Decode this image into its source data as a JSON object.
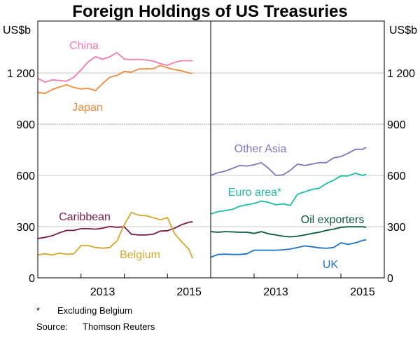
{
  "chart_data": {
    "type": "line",
    "title": "Foreign Holdings of US Treasuries",
    "ylabel_left": "US$b",
    "ylabel_right": "US$b",
    "ylim": [
      0,
      1500
    ],
    "yticks": [
      0,
      300,
      600,
      900,
      1200
    ],
    "xlim": [
      "2012-01",
      "2016-01"
    ],
    "xtick_labels": [
      "2013",
      "2015"
    ],
    "grid": true,
    "x": [
      "2012-01",
      "2012-03",
      "2012-05",
      "2012-07",
      "2012-09",
      "2012-11",
      "2013-01",
      "2013-03",
      "2013-05",
      "2013-07",
      "2013-09",
      "2013-11",
      "2014-01",
      "2014-03",
      "2014-05",
      "2014-07",
      "2014-09",
      "2014-11",
      "2015-01",
      "2015-03",
      "2015-05",
      "2015-07",
      "2015-08"
    ],
    "panels": [
      {
        "series": [
          {
            "name": "China",
            "color": "#f07cb4",
            "values": [
              1168,
              1146,
              1160,
              1155,
              1152,
              1175,
              1218,
              1265,
              1295,
              1280,
              1295,
              1319,
              1282,
              1278,
              1280,
              1276,
              1270,
              1255,
              1245,
              1262,
              1272,
              1272,
              1272
            ]
          },
          {
            "name": "Japan",
            "color": "#f58a3c",
            "values": [
              1086,
              1080,
              1103,
              1118,
              1131,
              1115,
              1106,
              1110,
              1097,
              1138,
              1175,
              1186,
              1209,
              1205,
              1223,
              1224,
              1225,
              1244,
              1230,
              1220,
              1212,
              1200,
              1198
            ]
          },
          {
            "name": "Caribbean",
            "color": "#7a1a48",
            "values": [
              230,
              237,
              247,
              264,
              278,
              278,
              288,
              288,
              285,
              291,
              301,
              296,
              299,
              255,
              251,
              251,
              255,
              274,
              276,
              291,
              312,
              326,
              328
            ]
          },
          {
            "name": "Belgium",
            "color": "#d4a72c",
            "values": [
              134,
              141,
              134,
              145,
              138,
              141,
              189,
              189,
              178,
              174,
              178,
              216,
              312,
              383,
              367,
              364,
              353,
              340,
              353,
              258,
              210,
              166,
              114
            ]
          }
        ]
      },
      {
        "series": [
          {
            "name": "Other Asia",
            "color": "#8474bc",
            "values": [
              600,
              616,
              625,
              641,
              658,
              655,
              662,
              675,
              641,
              600,
              603,
              630,
              666,
              658,
              666,
              675,
              675,
              703,
              710,
              730,
              753,
              753,
              764
            ]
          },
          {
            "name": "Euro area*",
            "color": "#1dbcaa",
            "values": [
              374,
              388,
              394,
              401,
              419,
              428,
              436,
              449,
              442,
              428,
              433,
              424,
              490,
              504,
              518,
              525,
              552,
              572,
              597,
              597,
              613,
              600,
              607
            ]
          },
          {
            "name": "Oil exporters",
            "color": "#0b5a3a",
            "values": [
              271,
              267,
              271,
              269,
              267,
              267,
              260,
              271,
              258,
              251,
              244,
              240,
              244,
              251,
              260,
              267,
              278,
              285,
              296,
              299,
              299,
              299,
              296
            ]
          },
          {
            "name": "UK",
            "color": "#1f73c4",
            "values": [
              121,
              137,
              139,
              137,
              137,
              141,
              162,
              162,
              162,
              162,
              164,
              169,
              178,
              187,
              182,
              176,
              173,
              178,
              205,
              196,
              205,
              219,
              223
            ]
          }
        ]
      }
    ]
  },
  "notes": {
    "footnote_marker": "*",
    "footnote_text": "Excluding Belgium",
    "source_label": "Source:",
    "source_text": "Thomson Reuters"
  }
}
